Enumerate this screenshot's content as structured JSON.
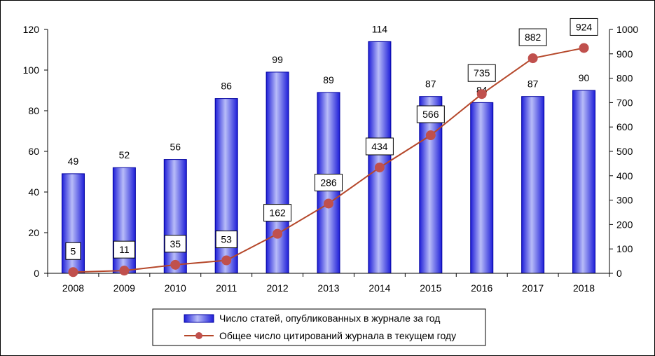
{
  "chart_data": {
    "type": "bar",
    "categories": [
      "2008",
      "2009",
      "2010",
      "2011",
      "2012",
      "2013",
      "2014",
      "2015",
      "2016",
      "2017",
      "2018"
    ],
    "series": [
      {
        "name": "Число статей, опубликованных в журнале за год",
        "type": "bar",
        "axis": "left",
        "values": [
          49,
          52,
          56,
          86,
          99,
          89,
          114,
          87,
          84,
          87,
          90
        ],
        "color": "#2E2EE8"
      },
      {
        "name": "Общее число цитирований журнала в текущем году",
        "type": "line",
        "axis": "right",
        "values": [
          5,
          11,
          35,
          53,
          162,
          286,
          434,
          566,
          735,
          882,
          924
        ],
        "line_color": "#B5472A",
        "marker_color": "#C0504D"
      }
    ],
    "y_left": {
      "min": 0,
      "max": 120,
      "ticks": [
        0,
        20,
        40,
        60,
        80,
        100,
        120
      ]
    },
    "y_right": {
      "min": 0,
      "max": 1000,
      "ticks": [
        0,
        100,
        200,
        300,
        400,
        500,
        600,
        700,
        800,
        900,
        1000
      ]
    },
    "grid": false,
    "legend_position": "bottom-center"
  }
}
